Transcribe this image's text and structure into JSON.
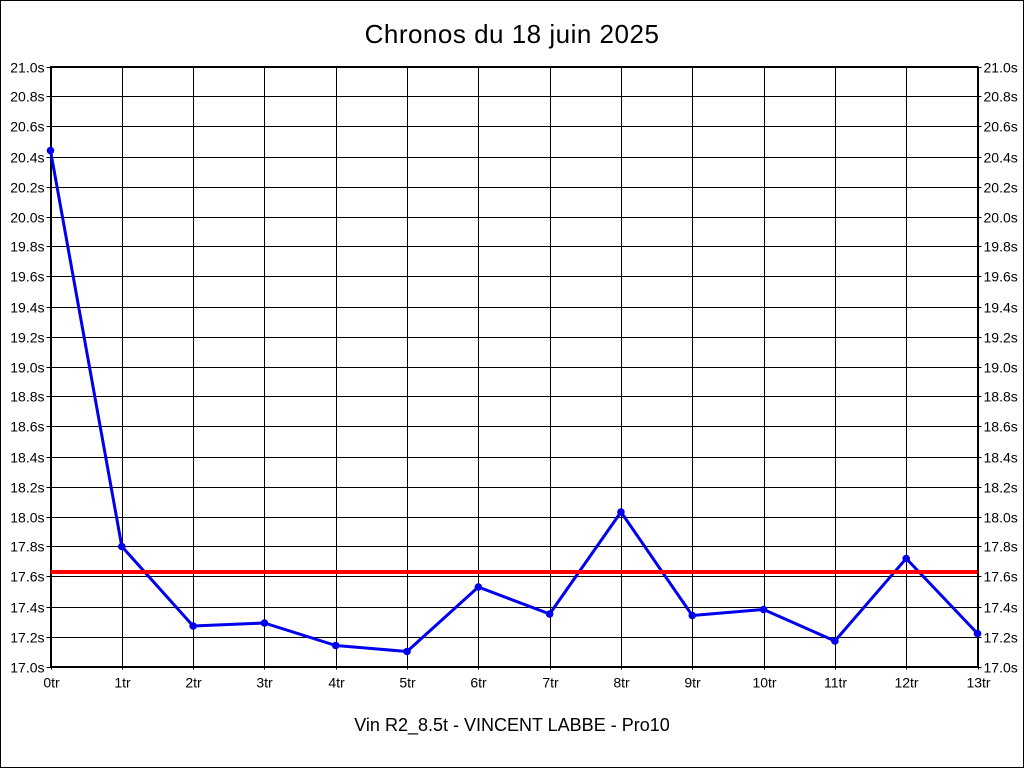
{
  "chart_data": {
    "type": "line",
    "title": "Chronos du 18 juin 2025",
    "subtitle": "Vin R2_8.5t - VINCENT LABBE - Pro10",
    "categories": [
      "0tr",
      "1tr",
      "2tr",
      "3tr",
      "4tr",
      "5tr",
      "6tr",
      "7tr",
      "8tr",
      "9tr",
      "10tr",
      "11tr",
      "12tr",
      "13tr"
    ],
    "values": [
      20.44,
      17.8,
      17.27,
      17.29,
      17.14,
      17.1,
      17.53,
      17.35,
      18.03,
      17.34,
      17.38,
      17.17,
      17.72,
      17.22
    ],
    "reference_line": {
      "value": 17.63,
      "color": "#ff0000"
    },
    "ylim": [
      17.0,
      21.0
    ],
    "ytick_step": 0.2,
    "y_unit_suffix": "s",
    "xlabel": "",
    "ylabel": "",
    "grid": true,
    "legend": false,
    "y_labels_both_sides": true,
    "series_color": "#0000ee",
    "axis_color": "#000000",
    "background_color": "#ffffff"
  }
}
